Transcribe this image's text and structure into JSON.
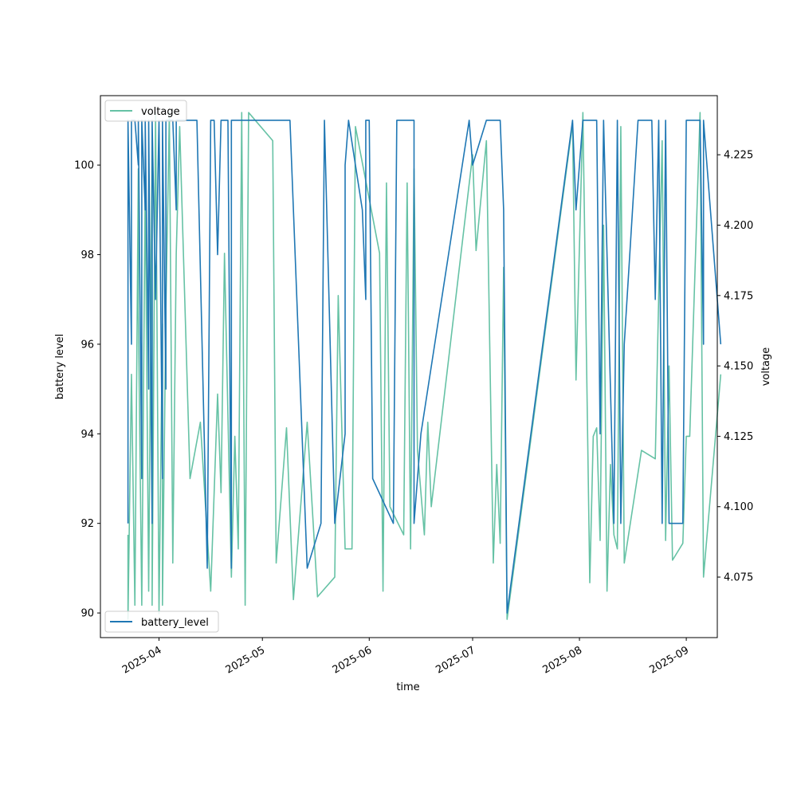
{
  "chart_data": {
    "type": "line",
    "title": "",
    "xlabel": "time",
    "ylabel": "battery level",
    "y2label": "voltage",
    "x_ticks": [
      "2025-04",
      "2025-05",
      "2025-06",
      "2025-07",
      "2025-08",
      "2025-09"
    ],
    "y_ticks": [
      "90",
      "92",
      "94",
      "96",
      "98",
      "100"
    ],
    "y2_ticks": [
      "4.075",
      "4.100",
      "4.125",
      "4.150",
      "4.175",
      "4.200",
      "4.225"
    ],
    "xlim": [
      "2025-03-15",
      "2025-09-10"
    ],
    "ylim": [
      89.45,
      101.55
    ],
    "y2lim": [
      4.0535,
      4.246
    ],
    "grid": false,
    "legend": [
      {
        "name": "voltage",
        "placement": "top-left",
        "color": "#66c2a5"
      },
      {
        "name": "battery_level",
        "placement": "bottom-left",
        "color": "#1f77b4"
      }
    ],
    "series": [
      {
        "name": "battery_level",
        "axis": "left",
        "color": "#1f77b4",
        "points": [
          [
            "2025-03-23",
            92
          ],
          [
            "2025-03-23",
            101
          ],
          [
            "2025-03-24",
            96
          ],
          [
            "2025-03-24",
            101
          ],
          [
            "2025-03-25",
            101
          ],
          [
            "2025-03-26",
            100
          ],
          [
            "2025-03-26",
            101
          ],
          [
            "2025-03-27",
            93
          ],
          [
            "2025-03-27",
            101
          ],
          [
            "2025-03-28",
            99
          ],
          [
            "2025-03-28",
            101
          ],
          [
            "2025-03-29",
            95
          ],
          [
            "2025-03-29",
            101
          ],
          [
            "2025-03-30",
            92
          ],
          [
            "2025-03-30",
            101
          ],
          [
            "2025-03-31",
            97
          ],
          [
            "2025-04-01",
            101
          ],
          [
            "2025-04-02",
            93
          ],
          [
            "2025-04-02",
            101
          ],
          [
            "2025-04-03",
            95
          ],
          [
            "2025-04-03",
            101
          ],
          [
            "2025-04-05",
            101
          ],
          [
            "2025-04-06",
            99
          ],
          [
            "2025-04-06",
            101
          ],
          [
            "2025-04-07",
            101
          ],
          [
            "2025-04-07",
            101
          ],
          [
            "2025-04-11",
            101
          ],
          [
            "2025-04-12",
            101
          ],
          [
            "2025-04-15",
            91
          ],
          [
            "2025-04-16",
            101
          ],
          [
            "2025-04-17",
            101
          ],
          [
            "2025-04-18",
            98
          ],
          [
            "2025-04-19",
            101
          ],
          [
            "2025-04-21",
            101
          ],
          [
            "2025-04-22",
            91
          ],
          [
            "2025-04-22",
            101
          ],
          [
            "2025-04-23",
            101
          ],
          [
            "2025-04-27",
            101
          ],
          [
            "2025-04-30",
            101
          ],
          [
            "2025-04-30",
            101
          ],
          [
            "2025-05-03",
            101
          ],
          [
            "2025-05-09",
            101
          ],
          [
            "2025-05-14",
            91
          ],
          [
            "2025-05-18",
            92
          ],
          [
            "2025-05-19",
            101
          ],
          [
            "2025-05-22",
            92
          ],
          [
            "2025-05-25",
            94
          ],
          [
            "2025-05-25",
            100
          ],
          [
            "2025-05-26",
            101
          ],
          [
            "2025-05-30",
            99
          ],
          [
            "2025-05-31",
            97
          ],
          [
            "2025-05-31",
            101
          ],
          [
            "2025-06-01",
            101
          ],
          [
            "2025-06-02",
            93
          ],
          [
            "2025-06-08",
            92
          ],
          [
            "2025-06-09",
            101
          ],
          [
            "2025-06-14",
            101
          ],
          [
            "2025-06-14",
            92
          ],
          [
            "2025-06-16",
            94
          ],
          [
            "2025-06-30",
            101
          ],
          [
            "2025-07-01",
            100
          ],
          [
            "2025-07-05",
            101
          ],
          [
            "2025-07-09",
            101
          ],
          [
            "2025-07-10",
            99
          ],
          [
            "2025-07-10",
            99
          ],
          [
            "2025-07-11",
            90
          ],
          [
            "2025-07-30",
            101
          ],
          [
            "2025-07-31",
            99
          ],
          [
            "2025-08-02",
            101
          ],
          [
            "2025-08-06",
            101
          ],
          [
            "2025-08-07",
            94
          ],
          [
            "2025-08-08",
            101
          ],
          [
            "2025-08-11",
            92
          ],
          [
            "2025-08-12",
            101
          ],
          [
            "2025-08-13",
            92
          ],
          [
            "2025-08-14",
            96
          ],
          [
            "2025-08-18",
            101
          ],
          [
            "2025-08-22",
            101
          ],
          [
            "2025-08-23",
            97
          ],
          [
            "2025-08-24",
            101
          ],
          [
            "2025-08-25",
            92
          ],
          [
            "2025-08-26",
            101
          ],
          [
            "2025-08-27",
            92
          ],
          [
            "2025-08-31",
            92
          ],
          [
            "2025-09-01",
            101
          ],
          [
            "2025-09-05",
            101
          ],
          [
            "2025-09-06",
            96
          ],
          [
            "2025-09-06",
            101
          ],
          [
            "2025-09-11",
            96
          ]
        ]
      },
      {
        "name": "voltage",
        "axis": "right",
        "color": "#66c2a5",
        "points": [
          [
            "2025-03-23",
            4.09
          ],
          [
            "2025-03-23",
            4.06
          ],
          [
            "2025-03-24",
            4.147
          ],
          [
            "2025-03-25",
            4.065
          ],
          [
            "2025-03-26",
            4.22
          ],
          [
            "2025-03-26",
            4.17
          ],
          [
            "2025-03-27",
            4.065
          ],
          [
            "2025-03-28",
            4.215
          ],
          [
            "2025-03-29",
            4.07
          ],
          [
            "2025-03-30",
            4.23
          ],
          [
            "2025-03-30",
            4.065
          ],
          [
            "2025-03-31",
            4.24
          ],
          [
            "2025-04-01",
            4.062
          ],
          [
            "2025-04-02",
            4.165
          ],
          [
            "2025-04-02",
            4.065
          ],
          [
            "2025-04-03",
            4.17
          ],
          [
            "2025-04-04",
            4.24
          ],
          [
            "2025-04-05",
            4.08
          ],
          [
            "2025-04-06",
            4.19
          ],
          [
            "2025-04-07",
            4.235
          ],
          [
            "2025-04-10",
            4.11
          ],
          [
            "2025-04-13",
            4.13
          ],
          [
            "2025-04-16",
            4.07
          ],
          [
            "2025-04-18",
            4.14
          ],
          [
            "2025-04-19",
            4.105
          ],
          [
            "2025-04-20",
            4.19
          ],
          [
            "2025-04-22",
            4.075
          ],
          [
            "2025-04-23",
            4.125
          ],
          [
            "2025-04-24",
            4.085
          ],
          [
            "2025-04-25",
            4.24
          ],
          [
            "2025-04-26",
            4.065
          ],
          [
            "2025-04-27",
            4.24
          ],
          [
            "2025-05-04",
            4.23
          ],
          [
            "2025-05-05",
            4.08
          ],
          [
            "2025-05-08",
            4.128
          ],
          [
            "2025-05-10",
            4.067
          ],
          [
            "2025-05-14",
            4.13
          ],
          [
            "2025-05-17",
            4.068
          ],
          [
            "2025-05-22",
            4.075
          ],
          [
            "2025-05-23",
            4.175
          ],
          [
            "2025-05-25",
            4.085
          ],
          [
            "2025-05-27",
            4.085
          ],
          [
            "2025-05-28",
            4.235
          ],
          [
            "2025-06-04",
            4.19
          ],
          [
            "2025-06-05",
            4.07
          ],
          [
            "2025-06-06",
            4.215
          ],
          [
            "2025-06-07",
            4.1
          ],
          [
            "2025-06-11",
            4.09
          ],
          [
            "2025-06-12",
            4.215
          ],
          [
            "2025-06-13",
            4.085
          ],
          [
            "2025-06-14",
            4.22
          ],
          [
            "2025-06-15",
            4.12
          ],
          [
            "2025-06-17",
            4.09
          ],
          [
            "2025-06-18",
            4.13
          ],
          [
            "2025-06-19",
            4.1
          ],
          [
            "2025-07-01",
            4.225
          ],
          [
            "2025-07-02",
            4.191
          ],
          [
            "2025-07-05",
            4.23
          ],
          [
            "2025-07-07",
            4.08
          ],
          [
            "2025-07-08",
            4.115
          ],
          [
            "2025-07-09",
            4.087
          ],
          [
            "2025-07-10",
            4.185
          ],
          [
            "2025-07-11",
            4.06
          ],
          [
            "2025-07-30",
            4.236
          ],
          [
            "2025-07-31",
            4.145
          ],
          [
            "2025-08-02",
            4.24
          ],
          [
            "2025-08-04",
            4.073
          ],
          [
            "2025-08-05",
            4.125
          ],
          [
            "2025-08-06",
            4.128
          ],
          [
            "2025-08-07",
            4.088
          ],
          [
            "2025-08-08",
            4.2
          ],
          [
            "2025-08-09",
            4.07
          ],
          [
            "2025-08-10",
            4.115
          ],
          [
            "2025-08-11",
            4.09
          ],
          [
            "2025-08-12",
            4.085
          ],
          [
            "2025-08-13",
            4.235
          ],
          [
            "2025-08-14",
            4.08
          ],
          [
            "2025-08-19",
            4.12
          ],
          [
            "2025-08-23",
            4.117
          ],
          [
            "2025-08-24",
            4.175
          ],
          [
            "2025-08-25",
            4.23
          ],
          [
            "2025-08-26",
            4.088
          ],
          [
            "2025-08-27",
            4.15
          ],
          [
            "2025-08-28",
            4.081
          ],
          [
            "2025-08-31",
            4.087
          ],
          [
            "2025-09-01",
            4.125
          ],
          [
            "2025-09-02",
            4.125
          ],
          [
            "2025-09-05",
            4.24
          ],
          [
            "2025-09-06",
            4.075
          ],
          [
            "2025-09-11",
            4.147
          ]
        ]
      }
    ]
  }
}
